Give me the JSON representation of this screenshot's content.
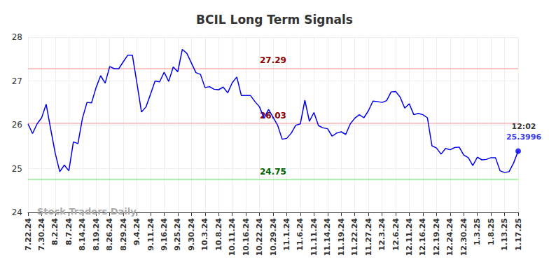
{
  "chart_data": {
    "type": "line",
    "title": "BCIL Long Term Signals",
    "categories": [
      "7.22.24",
      null,
      null,
      "7.30.24",
      null,
      null,
      "8.2.24",
      null,
      null,
      "8.7.24",
      null,
      null,
      "8.14.24",
      null,
      null,
      "8.19.24",
      null,
      null,
      "8.26.24",
      null,
      null,
      "8.29.24",
      null,
      null,
      "9.4.24",
      null,
      null,
      "9.11.24",
      null,
      null,
      "9.16.24",
      null,
      null,
      "9.25.24",
      null,
      null,
      "9.30.24",
      null,
      null,
      "10.3.24",
      null,
      null,
      "10.8.24",
      null,
      null,
      "10.11.24",
      null,
      null,
      "10.16.24",
      null,
      null,
      "10.22.24",
      null,
      null,
      "10.29.24",
      null,
      null,
      "11.1.24",
      null,
      null,
      "11.6.24",
      null,
      null,
      "11.11.24",
      null,
      null,
      "11.14.24",
      null,
      null,
      "11.19.24",
      null,
      null,
      "11.22.24",
      null,
      null,
      "11.27.24",
      null,
      null,
      "12.3.24",
      null,
      null,
      "12.6.24",
      null,
      null,
      "12.11.24",
      null,
      null,
      "12.16.24",
      null,
      null,
      "12.19.24",
      null,
      null,
      "12.24.24",
      null,
      null,
      "12.30.24",
      null,
      null,
      "1.3.25",
      null,
      null,
      "1.8.25",
      null,
      null,
      "1.13.25",
      null,
      null,
      "1.17.25"
    ],
    "values": [
      26.02,
      25.8,
      26.02,
      26.16,
      26.47,
      25.9,
      25.35,
      24.93,
      25.08,
      24.95,
      25.61,
      25.57,
      26.15,
      26.51,
      26.5,
      26.85,
      27.12,
      26.95,
      27.33,
      27.28,
      27.28,
      27.44,
      27.59,
      27.59,
      26.95,
      26.29,
      26.41,
      26.7,
      27.0,
      26.98,
      27.2,
      26.99,
      27.32,
      27.21,
      27.72,
      27.63,
      27.41,
      27.19,
      27.15,
      26.85,
      26.87,
      26.81,
      26.8,
      26.86,
      26.73,
      26.96,
      27.09,
      26.67,
      26.67,
      26.67,
      26.53,
      26.41,
      26.15,
      26.35,
      26.17,
      25.99,
      25.67,
      25.69,
      25.81,
      25.99,
      26.02,
      26.56,
      26.08,
      26.28,
      25.98,
      25.93,
      25.91,
      25.74,
      25.81,
      25.84,
      25.78,
      26.02,
      26.15,
      26.23,
      26.16,
      26.32,
      26.54,
      26.53,
      26.51,
      26.55,
      26.75,
      26.76,
      26.63,
      26.38,
      26.48,
      26.23,
      26.26,
      26.23,
      26.16,
      25.52,
      25.47,
      25.33,
      25.46,
      25.43,
      25.48,
      25.49,
      25.31,
      25.25,
      25.07,
      25.26,
      25.2,
      25.21,
      25.25,
      25.25,
      24.95,
      24.91,
      24.93,
      25.13,
      25.3996
    ],
    "color": "#0000ee",
    "ylim": [
      24,
      28
    ],
    "yticks": [
      24,
      25,
      26,
      27,
      28
    ],
    "grid": true,
    "reference_lines": [
      {
        "value": 27.29,
        "label": "27.29",
        "color": "#ffb3b3",
        "label_color": "#8b0000"
      },
      {
        "value": 26.03,
        "label": "26.03",
        "color": "#ffb3b3",
        "label_color": "#8b0000"
      },
      {
        "value": 24.75,
        "label": "24.75",
        "color": "#90ee90",
        "label_color": "#006400"
      }
    ],
    "last_point": {
      "time": "12:02",
      "value_label": "25.3996"
    },
    "watermark": "Stock Traders Daily"
  }
}
